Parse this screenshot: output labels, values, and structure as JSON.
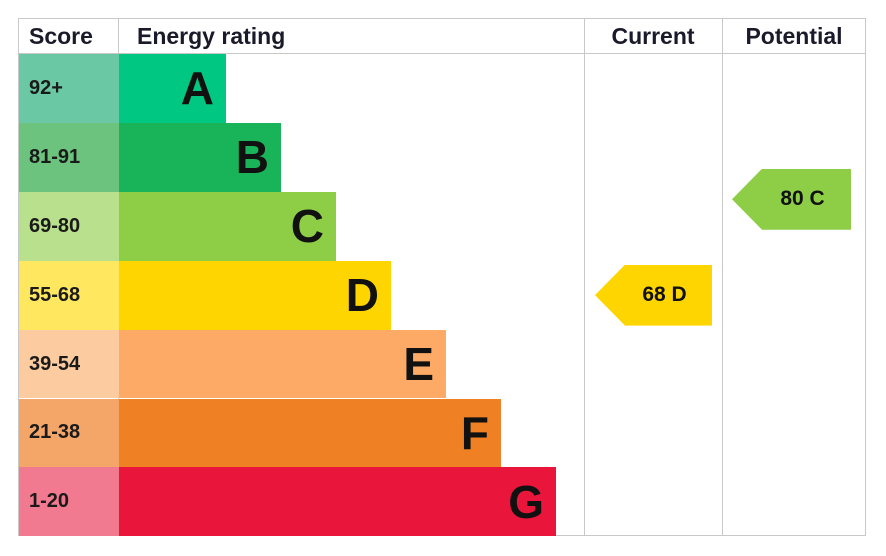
{
  "chart_data": {
    "type": "table",
    "columns": [
      "Score",
      "Energy rating",
      "Current",
      "Potential"
    ],
    "bands": [
      {
        "score": "92+",
        "letter": "A",
        "color": "#00c781",
        "light": "#6ac8a5",
        "min": 92,
        "max": 100
      },
      {
        "score": "81-91",
        "letter": "B",
        "color": "#19b459",
        "light": "#6cc37d",
        "min": 81,
        "max": 91
      },
      {
        "score": "69-80",
        "letter": "C",
        "color": "#8dce46",
        "light": "#b9e08c",
        "min": 69,
        "max": 80
      },
      {
        "score": "55-68",
        "letter": "D",
        "color": "#ffd500",
        "light": "#ffe760",
        "min": 55,
        "max": 68
      },
      {
        "score": "39-54",
        "letter": "E",
        "color": "#fcaa65",
        "light": "#fdcba0",
        "min": 39,
        "max": 54
      },
      {
        "score": "21-38",
        "letter": "F",
        "color": "#ef8023",
        "light": "#f4a669",
        "min": 21,
        "max": 38
      },
      {
        "score": "1-20",
        "letter": "G",
        "color": "#e9153b",
        "light": "#f27a90",
        "min": 1,
        "max": 20
      }
    ],
    "current": {
      "value": 68,
      "band": "D",
      "label": "68 D",
      "color": "#ffd500"
    },
    "potential": {
      "value": 80,
      "band": "C",
      "label": "80 C",
      "color": "#8dce46"
    }
  }
}
